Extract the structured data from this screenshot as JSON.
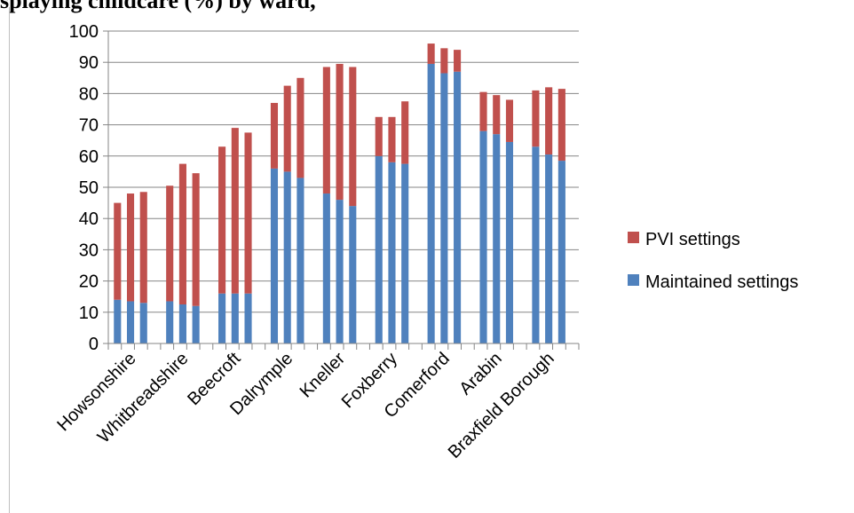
{
  "header": {
    "title_fragment": "splaying childcare (%) by ward,"
  },
  "colors": {
    "pvi": "#C0504D",
    "maintained": "#4F81BD",
    "axis": "#868686",
    "grid": "#868686"
  },
  "chart_data": {
    "type": "bar",
    "stacked": true,
    "categories": [
      "Howsonshire",
      "Whitbreadshire",
      "Beecroft",
      "Dalrymple",
      "Kneller",
      "Foxberry",
      "Comerford",
      "Arabin",
      "Braxfield Borough"
    ],
    "bars_per_category": 3,
    "ylim": [
      0,
      100
    ],
    "yticks": [
      0,
      10,
      20,
      30,
      40,
      50,
      60,
      70,
      80,
      90,
      100
    ],
    "grid": true,
    "legend_position": "right",
    "series": [
      {
        "name": "Maintained settings",
        "values": [
          [
            14,
            13.5,
            13
          ],
          [
            13.5,
            12.5,
            12
          ],
          [
            16,
            16,
            16
          ],
          [
            56,
            55,
            53
          ],
          [
            48,
            46,
            44
          ],
          [
            60,
            58,
            57.5
          ],
          [
            89.5,
            86.5,
            87
          ],
          [
            68,
            67,
            64.5
          ],
          [
            63,
            60.5,
            58.5
          ]
        ]
      },
      {
        "name": "PVI settings",
        "values": [
          [
            31,
            34.5,
            35.5
          ],
          [
            37,
            45,
            42.5
          ],
          [
            47,
            53,
            51.5
          ],
          [
            21,
            27.5,
            32
          ],
          [
            40.5,
            43.5,
            44.5
          ],
          [
            12.5,
            14.5,
            20
          ],
          [
            6.5,
            8,
            7
          ],
          [
            12.5,
            12.5,
            13.5
          ],
          [
            18,
            21.5,
            23
          ]
        ]
      }
    ],
    "legend": [
      "PVI settings",
      "Maintained settings"
    ]
  }
}
